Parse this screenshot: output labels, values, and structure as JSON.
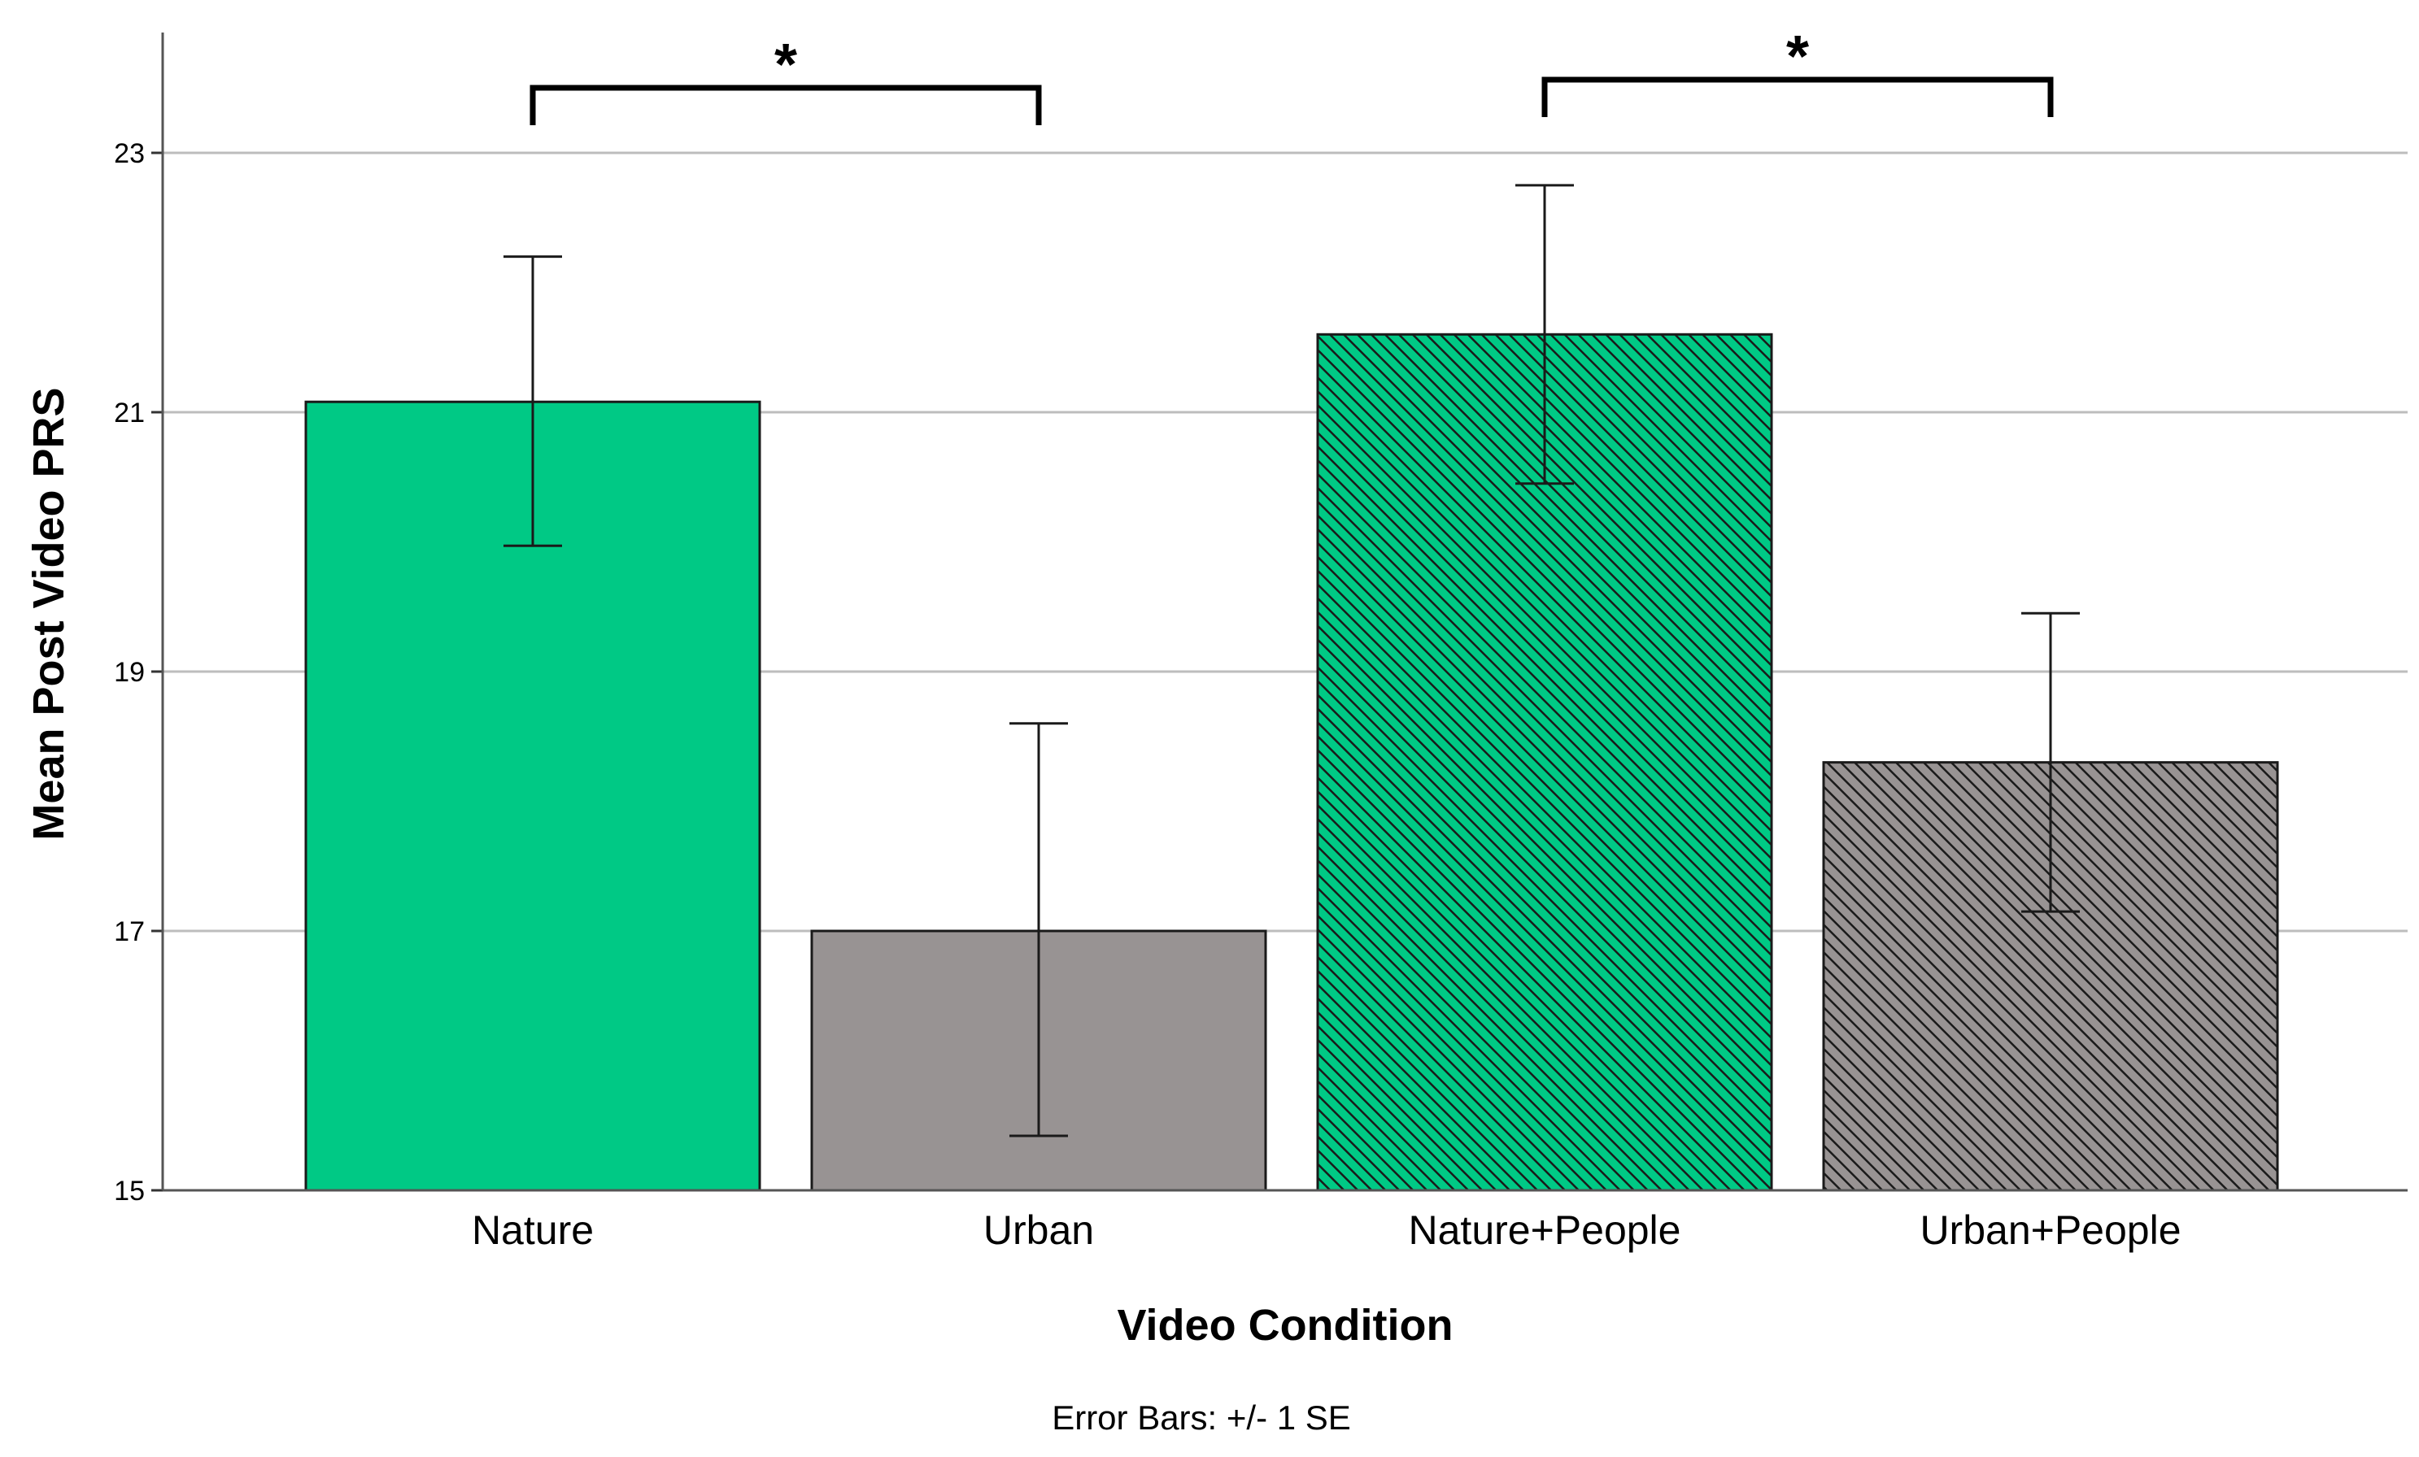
{
  "chart_data": {
    "type": "bar",
    "title": "",
    "xlabel": "Video Condition",
    "ylabel": "Mean Post Video PRS",
    "footnote": "Error Bars: +/- 1 SE",
    "ylim": [
      15,
      23.6
    ],
    "yticks": [
      15,
      17,
      19,
      21,
      23
    ],
    "grid": true,
    "categories": [
      "Nature",
      "Urban",
      "Nature+People",
      "Urban+People"
    ],
    "values": [
      21.08,
      17.0,
      21.6,
      18.3
    ],
    "error": [
      {
        "low": 19.97,
        "high": 22.2
      },
      {
        "low": 15.42,
        "high": 18.6
      },
      {
        "low": 20.45,
        "high": 22.75
      },
      {
        "low": 17.15,
        "high": 19.45
      }
    ],
    "bar_colors": [
      "#00c985",
      "#989393",
      "#00c985",
      "#989393"
    ],
    "bar_hatched": [
      false,
      false,
      true,
      true
    ],
    "significance": [
      {
        "from": 0,
        "to": 1,
        "label": "*"
      },
      {
        "from": 2,
        "to": 3,
        "label": "*"
      }
    ]
  }
}
